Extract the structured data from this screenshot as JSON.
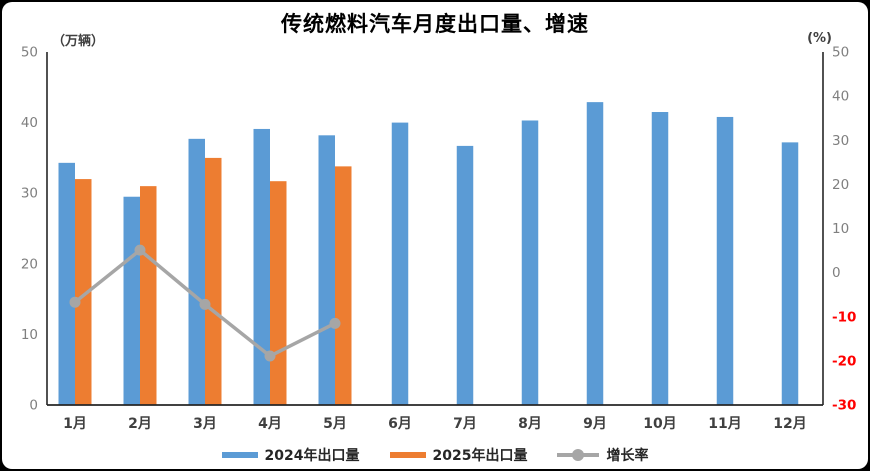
{
  "chart_data": {
    "type": "bar",
    "subtype": "grouped-bar-with-line",
    "title": "传统燃料汽车月度出口量、增速",
    "left_axis": {
      "unit": "（万辆）",
      "min": 0,
      "max": 50,
      "ticks": [
        0,
        10,
        20,
        30,
        40,
        50
      ]
    },
    "right_axis": {
      "unit": "(%)",
      "min": -30,
      "max": 50,
      "ticks": [
        50,
        40,
        30,
        20,
        10,
        0,
        -10,
        -20,
        -30
      ]
    },
    "categories": [
      "1月",
      "2月",
      "3月",
      "4月",
      "5月",
      "6月",
      "7月",
      "8月",
      "9月",
      "10月",
      "11月",
      "12月"
    ],
    "series": [
      {
        "name": "2024年出口量",
        "type": "bar",
        "axis": "left",
        "color": "#5B9BD5",
        "values": [
          34.3,
          29.5,
          37.7,
          39.1,
          38.2,
          40.0,
          36.7,
          40.3,
          42.9,
          41.5,
          40.8,
          37.2
        ]
      },
      {
        "name": "2025年出口量",
        "type": "bar",
        "axis": "left",
        "color": "#ED7D31",
        "values": [
          32.0,
          31.0,
          35.0,
          31.7,
          33.8,
          null,
          null,
          null,
          null,
          null,
          null,
          null
        ]
      },
      {
        "name": "增长率",
        "type": "line",
        "axis": "right",
        "color": "#A6A6A6",
        "values": [
          -6.7,
          5.1,
          -7.2,
          -18.9,
          -11.5,
          null,
          null,
          null,
          null,
          null,
          null,
          null
        ]
      }
    ],
    "legend_position": "bottom",
    "grid": false,
    "colors": {
      "tick_label": "#7F7F7F",
      "negative_tick_label": "#FF0000",
      "axis_line": "#262626",
      "x_label": "#404040",
      "title": "#000000",
      "background": "#FFFFFF",
      "frame": "#000000"
    }
  }
}
